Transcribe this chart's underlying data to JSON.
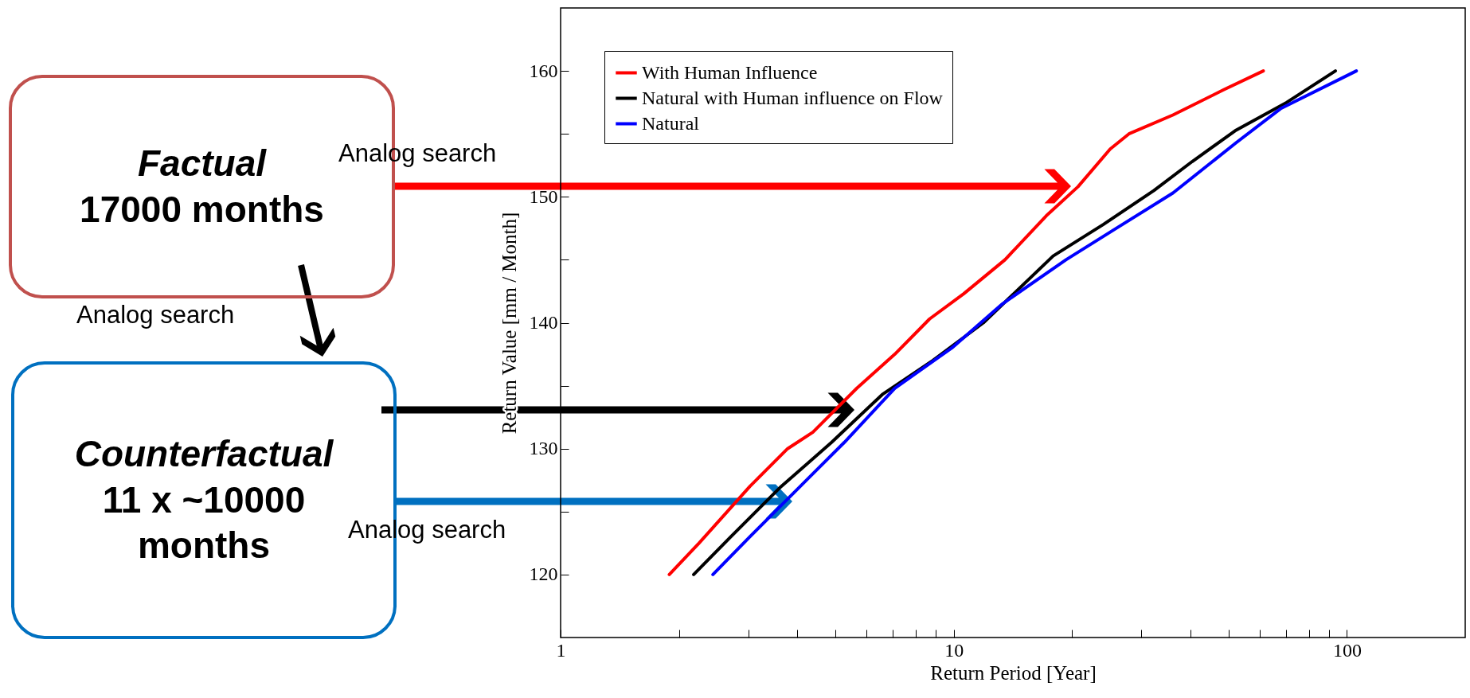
{
  "chart_data": {
    "type": "line",
    "xlabel": "Return Period [Year]",
    "ylabel": "Return Value [mm / Month]",
    "log": "x",
    "xlim": [
      1,
      200
    ],
    "ylim": [
      115,
      165
    ],
    "xticks": [
      1,
      {
        "value": 2,
        "label": null
      },
      {
        "value": 3,
        "label": null
      },
      {
        "value": 4,
        "label": null
      },
      {
        "value": 5,
        "label": null
      },
      {
        "value": 6,
        "label": null
      },
      {
        "value": 7,
        "label": null
      },
      {
        "value": 8,
        "label": null
      },
      {
        "value": 9,
        "label": null
      },
      10,
      {
        "value": 20,
        "label": null
      },
      {
        "value": 30,
        "label": null
      },
      {
        "value": 40,
        "label": null
      },
      {
        "value": 50,
        "label": null
      },
      {
        "value": 60,
        "label": null
      },
      {
        "value": 70,
        "label": null
      },
      {
        "value": 80,
        "label": null
      },
      {
        "value": 90,
        "label": null
      },
      100
    ],
    "yticks": [
      120,
      {
        "value": 125,
        "label": null
      },
      130,
      {
        "value": 135,
        "label": null
      },
      140,
      {
        "value": 145,
        "label": null
      },
      150,
      {
        "value": 155,
        "label": null
      },
      160
    ],
    "grid": false,
    "legend": "top left",
    "marker": "none",
    "line_style": "solid",
    "series": [
      {
        "name": "With Human Influence",
        "color": "#ff0000",
        "x": [
          1.89,
          2.25,
          3.03,
          3.78,
          4.38,
          5.67,
          7.08,
          8.68,
          10.6,
          13.5,
          17.2,
          20.7,
          25,
          27.9,
          36.1,
          48.6,
          61.3
        ],
        "values": [
          120,
          122.5,
          127,
          130,
          131.3,
          134.8,
          137.5,
          140.3,
          142.3,
          145,
          148.5,
          150.8,
          153.8,
          155,
          156.5,
          158.5,
          160
        ]
      },
      {
        "name": "Natural with Human influence on Flow",
        "color": "#000000",
        "x": [
          2.18,
          2.71,
          3.64,
          4.89,
          6.58,
          8.85,
          11.9,
          17.9,
          24.0,
          32.3,
          40.4,
          52.3,
          70.3,
          93.5
        ],
        "values": [
          120,
          123,
          127,
          130.5,
          134.3,
          137,
          140,
          145.3,
          147.8,
          150.5,
          152.8,
          155.3,
          157.5,
          160
        ]
      },
      {
        "name": "Natural",
        "color": "#0000ff",
        "x": [
          2.44,
          3.03,
          3.92,
          5.27,
          7.08,
          9.89,
          13.3,
          19.3,
          25.9,
          36.1,
          52.3,
          67.8,
          105.7
        ],
        "values": [
          120,
          123,
          126.5,
          130.5,
          134.8,
          138,
          141.5,
          145,
          147.5,
          150.3,
          154.3,
          157,
          160
        ]
      }
    ],
    "annotations": [
      "Factual",
      "17000 months",
      "Analog search",
      "Analog search",
      "Counterfactual",
      "11 x ~10000 months",
      "Analog search"
    ]
  }
}
